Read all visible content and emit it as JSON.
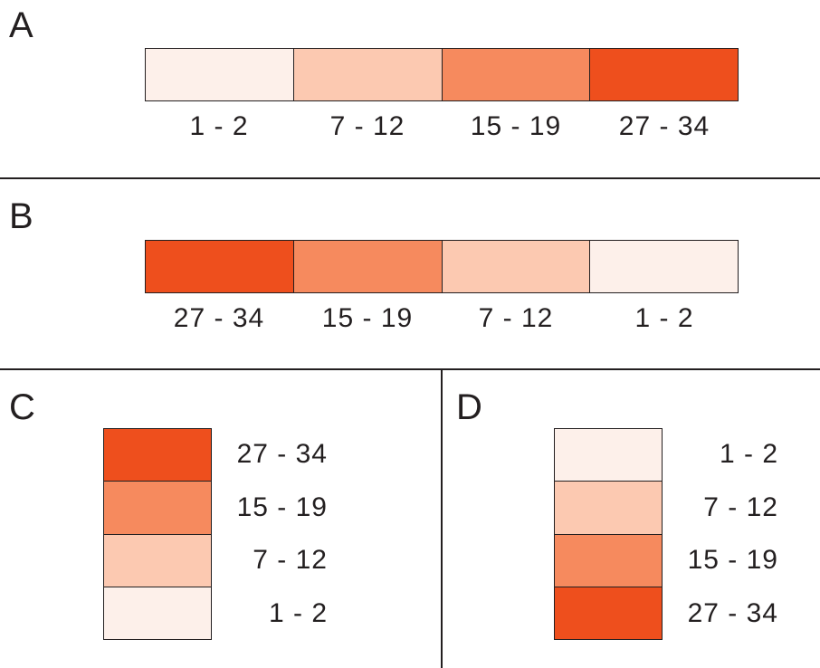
{
  "colors": {
    "c1": "#fdf0ea",
    "c2": "#fcc9b1",
    "c3": "#f68a5e",
    "c4": "#ee4f1d",
    "line": "#231f20"
  },
  "panels": {
    "a": {
      "letter": "A",
      "cells": [
        "c1",
        "c2",
        "c3",
        "c4"
      ],
      "labels": [
        "1 - 2",
        "7 - 12",
        "15 - 19",
        "27 - 34"
      ]
    },
    "b": {
      "letter": "B",
      "cells": [
        "c4",
        "c3",
        "c2",
        "c1"
      ],
      "labels": [
        "27 - 34",
        "15 - 19",
        "7 - 12",
        "1 - 2"
      ]
    },
    "c": {
      "letter": "C",
      "cells": [
        "c4",
        "c3",
        "c2",
        "c1"
      ],
      "labels": [
        "27 - 34",
        "15 - 19",
        "7 - 12",
        "1 - 2"
      ]
    },
    "d": {
      "letter": "D",
      "cells": [
        "c1",
        "c2",
        "c3",
        "c4"
      ],
      "labels": [
        "1 - 2",
        "7 - 12",
        "15 - 19",
        "27 - 34"
      ]
    }
  }
}
